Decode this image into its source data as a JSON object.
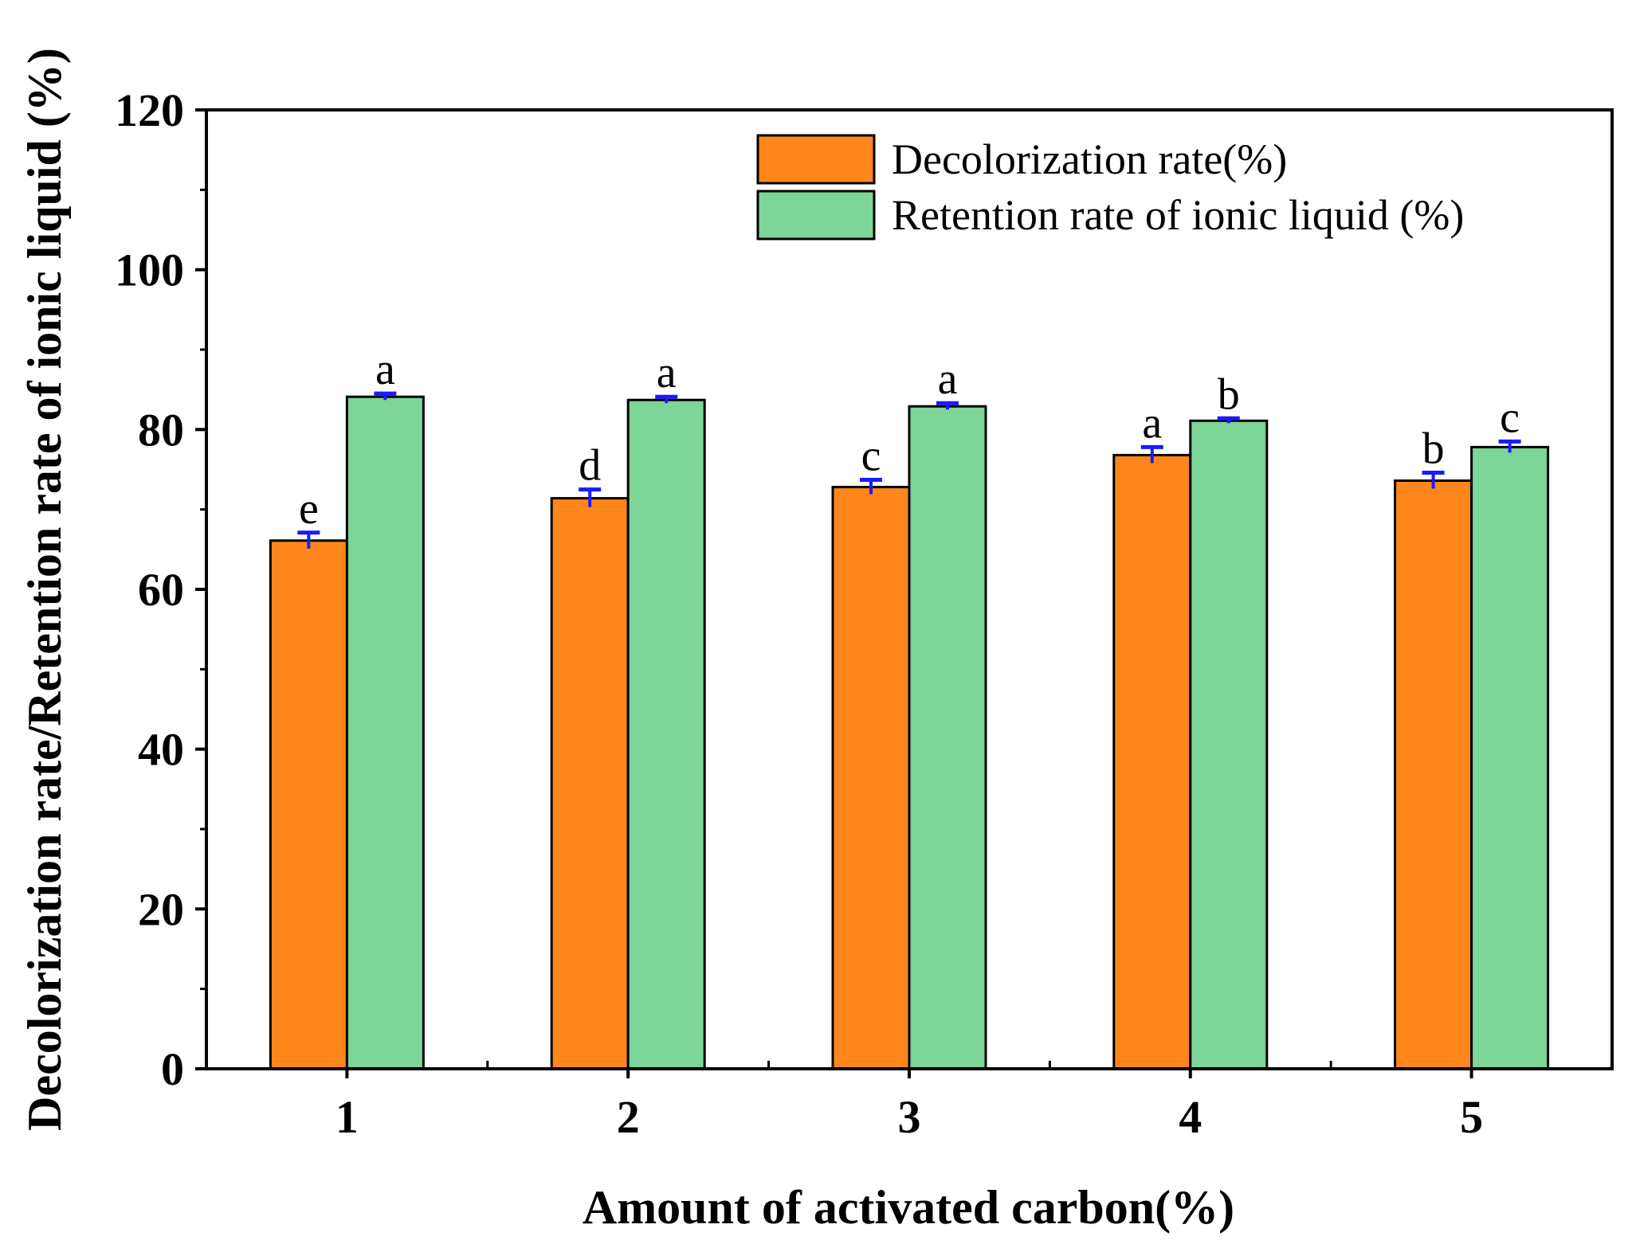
{
  "chart_data": {
    "type": "bar",
    "title": "",
    "xlabel": "Amount of activated carbon(%)",
    "ylabel": "Decolorization rate/Retention rate of ionic liquid (%)",
    "ylim": [
      0,
      120
    ],
    "yticks": [
      0,
      20,
      40,
      60,
      80,
      100,
      120
    ],
    "categories": [
      "1",
      "2",
      "3",
      "4",
      "5"
    ],
    "series": [
      {
        "name": "Decolorization rate(%)",
        "color": "#ff861a",
        "values": [
          66.1,
          71.4,
          72.8,
          76.8,
          73.6
        ],
        "errors": [
          1.0,
          1.1,
          0.9,
          1.0,
          1.0
        ],
        "letters": [
          "e",
          "d",
          "c",
          "a",
          "b"
        ]
      },
      {
        "name": "Retention rate of ionic liquid (%)",
        "color": "#7dd597",
        "values": [
          84.1,
          83.7,
          82.9,
          81.1,
          77.8
        ],
        "errors": [
          0.4,
          0.4,
          0.4,
          0.3,
          0.7
        ],
        "letters": [
          "a",
          "a",
          "a",
          "b",
          "c"
        ]
      }
    ],
    "error_bar_color": "#1a1aff",
    "legend_position": "top-right",
    "grid": false
  }
}
